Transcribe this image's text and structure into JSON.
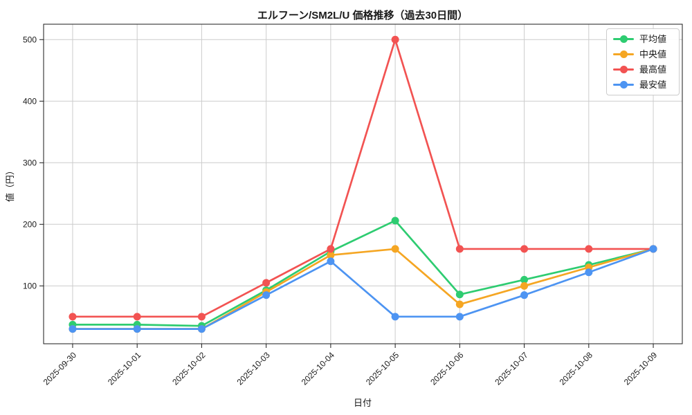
{
  "chart_data": {
    "type": "line",
    "title": "エルフーン/SM2L/U 価格推移（過去30日間）",
    "xlabel": "日付",
    "ylabel": "値（円）",
    "categories": [
      "2025-09-30",
      "2025-10-01",
      "2025-10-02",
      "2025-10-03",
      "2025-10-04",
      "2025-10-05",
      "2025-10-06",
      "2025-10-07",
      "2025-10-08",
      "2025-10-09"
    ],
    "series": [
      {
        "name": "平均値",
        "color": "#2ecc71",
        "values": [
          37,
          37,
          35,
          93,
          156,
          206,
          86,
          110,
          134,
          160
        ]
      },
      {
        "name": "中央値",
        "color": "#f5a623",
        "values": [
          30,
          30,
          30,
          90,
          150,
          160,
          70,
          100,
          130,
          160
        ]
      },
      {
        "name": "最高値",
        "color": "#f25352",
        "values": [
          50,
          50,
          50,
          105,
          160,
          500,
          160,
          160,
          160,
          160
        ]
      },
      {
        "name": "最安値",
        "color": "#4d94f2",
        "values": [
          30,
          30,
          30,
          85,
          140,
          50,
          50,
          85,
          122,
          160
        ]
      }
    ],
    "yticks": [
      100,
      200,
      300,
      400,
      500
    ],
    "ylim": [
      6,
      525
    ],
    "grid": true,
    "grid_color": "#cccccc",
    "axis_color": "#1a1a1a",
    "legend_position": "upper right",
    "marker": "circle",
    "background": "#ffffff"
  }
}
